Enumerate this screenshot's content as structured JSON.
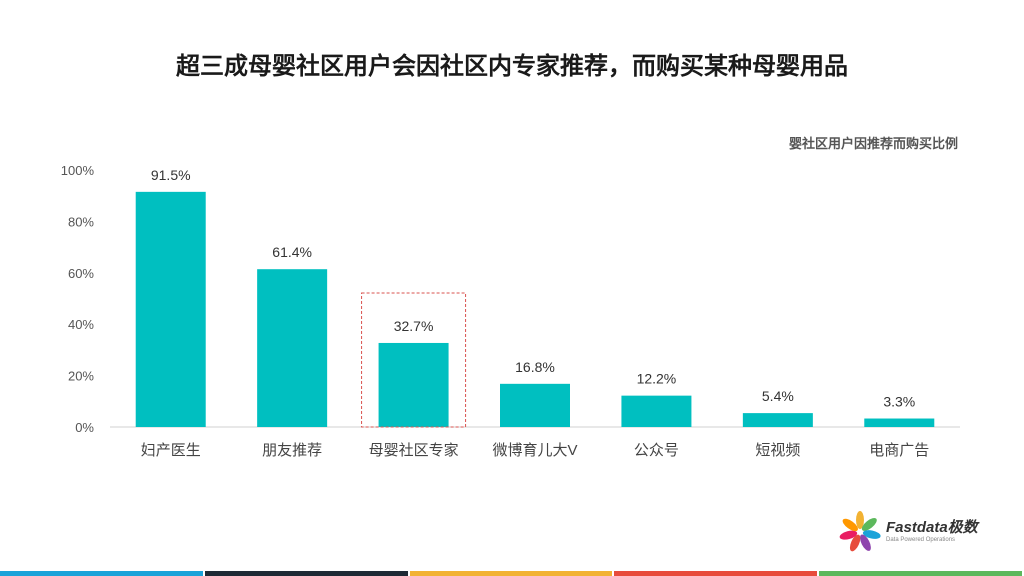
{
  "header": {
    "title": "超三成母婴社区用户会因社区内专家推荐，而购买某种母婴用品"
  },
  "chart_data": {
    "type": "bar",
    "title": "婴社区用户因推荐而购买比例",
    "categories": [
      "妇产医生",
      "朋友推荐",
      "母婴社区专家",
      "微博育儿大V",
      "公众号",
      "短视频",
      "电商广告"
    ],
    "values": [
      91.5,
      61.4,
      32.7,
      16.8,
      12.2,
      5.4,
      3.3
    ],
    "value_labels": [
      "91.5%",
      "61.4%",
      "32.7%",
      "16.8%",
      "12.2%",
      "5.4%",
      "3.3%"
    ],
    "y_ticks": [
      "0%",
      "20%",
      "40%",
      "60%",
      "80%",
      "100%"
    ],
    "ylim": [
      0,
      100
    ],
    "highlighted_category": "母婴社区专家",
    "bar_color": "#00bfc0",
    "highlight_border_color": "#d9534f",
    "grid": false
  },
  "logo": {
    "name": "Fastdata极数",
    "tagline": "Data Powered Operations"
  },
  "stripe_colors": [
    "#1aa3d9",
    "#1e2a35",
    "#f2b233",
    "#e74c3c",
    "#5cb85c"
  ]
}
